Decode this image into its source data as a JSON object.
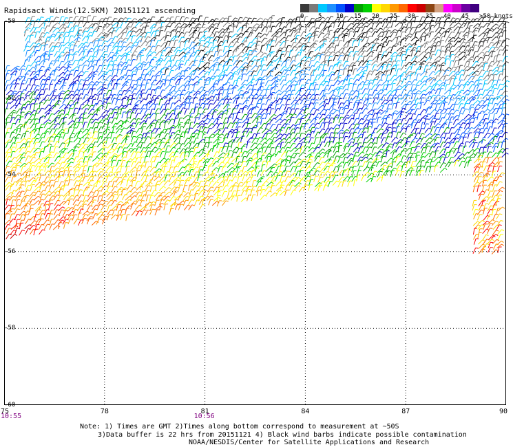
{
  "title": "Rapidsact Winds(12.5KM) 20151121 ascending",
  "colorbar": {
    "colors": [
      "#3a3a3a",
      "#7a7a7a",
      "#00c8ff",
      "#1e90ff",
      "#0050ff",
      "#0000c8",
      "#00a000",
      "#00d000",
      "#ffff00",
      "#ffd700",
      "#ff9900",
      "#ff6600",
      "#ff0000",
      "#cc0000",
      "#8b4513",
      "#d2a080",
      "#ff00ff",
      "#cc00cc",
      "#6a00a0",
      "#400080"
    ],
    "labels": [
      "0",
      "5",
      "10",
      "15",
      "20",
      "25",
      "30",
      "35",
      "40",
      "45",
      ">50 knots"
    ],
    "units": "knots"
  },
  "axes": {
    "lon_ticks": [
      "75",
      "78",
      "81",
      "84",
      "87",
      "90"
    ],
    "lat_ticks": [
      "-50",
      "-52",
      "-54",
      "-56",
      "-58",
      "-60"
    ],
    "times": [
      {
        "lon": 75,
        "label": "10:55"
      },
      {
        "lon": 81,
        "label": "10:56"
      }
    ]
  },
  "notes": {
    "line1": "Note: 1) Times are GMT 2)Times along bottom correspond to measurement at ~50S",
    "line2": "3)Data buffer is 22 hrs from 20151121 4) Black wind barbs indicate possible contamination",
    "line3": "NOAA/NESDIS/Center for Satellite Applications and Research"
  }
}
